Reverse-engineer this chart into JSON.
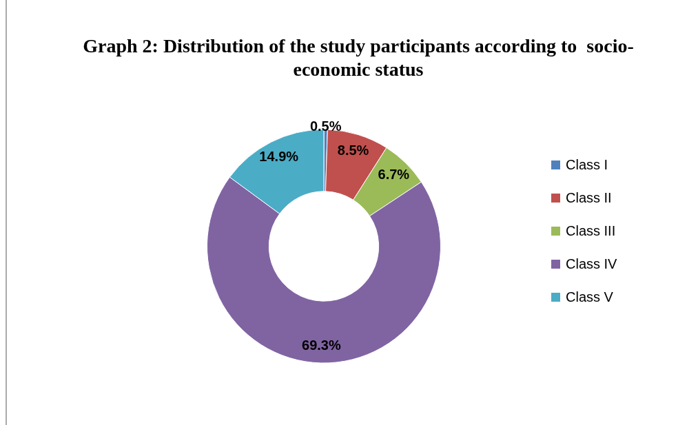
{
  "chart_data": {
    "type": "donut",
    "title": "Graph 2: Distribution of the study participants according to  socio-economic status",
    "categories": [
      "Class I",
      "Class II",
      "Class III",
      "Class IV",
      "Class V"
    ],
    "values": [
      0.5,
      8.5,
      6.7,
      69.3,
      14.9
    ],
    "value_labels": [
      "0.5%",
      "8.5%",
      "6.7%",
      "69.3%",
      "14.9%"
    ],
    "colors": [
      "#4f81bd",
      "#c0504d",
      "#9bbb59",
      "#8064a2",
      "#4bacc6"
    ],
    "legend": "right"
  }
}
